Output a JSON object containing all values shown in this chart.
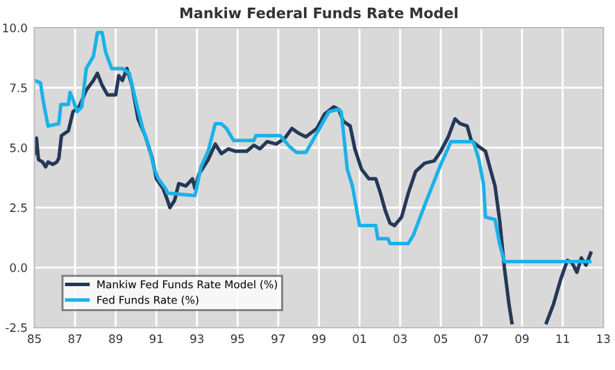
{
  "chart_data": {
    "type": "line",
    "title": "Mankiw Federal Funds Rate Model",
    "xlim": [
      1985,
      2013
    ],
    "xticks": [
      {
        "value": 1985,
        "label": "85"
      },
      {
        "value": 1987,
        "label": "87"
      },
      {
        "value": 1989,
        "label": "89"
      },
      {
        "value": 1991,
        "label": "91"
      },
      {
        "value": 1993,
        "label": "93"
      },
      {
        "value": 1995,
        "label": "95"
      },
      {
        "value": 1997,
        "label": "97"
      },
      {
        "value": 1999,
        "label": "99"
      },
      {
        "value": 2001,
        "label": "01"
      },
      {
        "value": 2003,
        "label": "03"
      },
      {
        "value": 2005,
        "label": "05"
      },
      {
        "value": 2007,
        "label": "07"
      },
      {
        "value": 2009,
        "label": "09"
      },
      {
        "value": 2011,
        "label": "11"
      },
      {
        "value": 2013,
        "label": "13"
      }
    ],
    "ylim": [
      -2.5,
      10
    ],
    "yticks": [
      {
        "value": -2.5,
        "label": "-2.5"
      },
      {
        "value": 0,
        "label": "0.0"
      },
      {
        "value": 2.5,
        "label": "2.5"
      },
      {
        "value": 5,
        "label": "5.0"
      },
      {
        "value": 7.5,
        "label": "7.5"
      },
      {
        "value": 10,
        "label": "10.0"
      }
    ],
    "grid": true,
    "legend": "bottom left",
    "marker": "none",
    "line_style": "solid",
    "series": [
      {
        "name": "Mankiw Fed Funds Rate Model (%)",
        "color": "#243858",
        "x": [
          1985.0,
          1985.1,
          1985.2,
          1985.4,
          1985.55,
          1985.67,
          1985.9,
          1986.1,
          1986.2,
          1986.33,
          1986.67,
          1986.9,
          1987.2,
          1987.55,
          1987.9,
          1988.1,
          1988.33,
          1988.6,
          1989.0,
          1989.15,
          1989.33,
          1989.55,
          1989.8,
          1990.1,
          1990.45,
          1990.8,
          1991.0,
          1991.33,
          1991.55,
          1991.67,
          1991.9,
          1992.1,
          1992.45,
          1992.78,
          1992.9,
          1993.1,
          1993.33,
          1993.55,
          1993.9,
          1994.2,
          1994.55,
          1994.9,
          1995.45,
          1995.8,
          1996.1,
          1996.45,
          1996.9,
          1997.33,
          1997.67,
          1998.0,
          1998.36,
          1998.9,
          1999.28,
          1999.73,
          1999.97,
          2000.2,
          2000.54,
          2000.77,
          2001.1,
          2001.46,
          2001.8,
          2002.03,
          2002.26,
          2002.5,
          2002.72,
          2003.07,
          2003.4,
          2003.76,
          2004.2,
          2004.68,
          2005.0,
          2005.37,
          2005.7,
          2005.95,
          2006.3,
          2006.5,
          2006.86,
          2007.2,
          2007.44,
          2007.67,
          2007.9,
          2008.13,
          2008.36,
          2008.5,
          2009.3,
          2010.2,
          2010.54,
          2010.9,
          2011.23,
          2011.46,
          2011.7,
          2011.92,
          2012.15,
          2012.38
        ],
        "values": [
          4.75,
          5.4,
          4.5,
          4.4,
          4.2,
          4.4,
          4.3,
          4.4,
          4.55,
          5.5,
          5.7,
          6.5,
          6.7,
          7.4,
          7.8,
          8.1,
          7.6,
          7.2,
          7.2,
          8.0,
          7.8,
          8.3,
          7.6,
          6.2,
          5.5,
          4.55,
          3.7,
          3.3,
          2.8,
          2.5,
          2.8,
          3.5,
          3.4,
          3.7,
          3.3,
          3.9,
          4.2,
          4.5,
          5.15,
          4.75,
          4.95,
          4.85,
          4.85,
          5.1,
          4.95,
          5.25,
          5.15,
          5.4,
          5.8,
          5.6,
          5.45,
          5.8,
          6.4,
          6.7,
          6.6,
          6.1,
          5.9,
          4.95,
          4.1,
          3.7,
          3.7,
          3.1,
          2.4,
          1.85,
          1.75,
          2.1,
          3.1,
          4.0,
          4.35,
          4.45,
          4.85,
          5.45,
          6.2,
          6.0,
          5.9,
          5.3,
          5.05,
          4.85,
          4.1,
          3.4,
          1.95,
          0.0,
          -1.55,
          -2.3,
          null,
          -2.3,
          -1.55,
          -0.5,
          0.3,
          0.2,
          -0.2,
          0.4,
          0.1,
          0.6
        ]
      },
      {
        "name": "Fed Funds Rate (%)",
        "color": "#1ab2e8",
        "x": [
          1985.0,
          1985.3,
          1985.44,
          1985.67,
          1986.2,
          1986.3,
          1986.67,
          1986.75,
          1986.9,
          1987.1,
          1987.33,
          1987.55,
          1987.9,
          1988.1,
          1988.33,
          1988.5,
          1988.67,
          1988.8,
          1989.33,
          1989.67,
          1990.0,
          1990.33,
          1990.67,
          1990.9,
          1991.1,
          1991.45,
          1991.55,
          1992.9,
          1993.2,
          1993.55,
          1993.9,
          1994.2,
          1994.45,
          1994.8,
          1995.8,
          1995.9,
          1997.1,
          1997.55,
          1997.9,
          1998.36,
          1998.7,
          1999.16,
          1999.5,
          1999.97,
          2000.1,
          2000.4,
          2000.65,
          2001.0,
          2001.8,
          2001.9,
          2002.4,
          2002.5,
          2003.4,
          2003.65,
          2004.3,
          2005.0,
          2005.5,
          2006.6,
          2006.86,
          2007.1,
          2007.2,
          2007.67,
          2007.9,
          2008.13,
          2012.33
        ],
        "values": [
          7.8,
          7.7,
          6.9,
          5.9,
          6.0,
          6.8,
          6.8,
          7.3,
          7.0,
          6.5,
          6.7,
          8.3,
          8.8,
          9.8,
          9.8,
          9.0,
          8.6,
          8.3,
          8.3,
          8.1,
          6.9,
          5.8,
          4.95,
          4.1,
          3.7,
          3.3,
          3.1,
          3.0,
          4.2,
          4.85,
          6.0,
          6.0,
          5.8,
          5.3,
          5.3,
          5.5,
          5.5,
          5.05,
          4.8,
          4.8,
          5.3,
          6.0,
          6.5,
          6.6,
          6.5,
          4.1,
          3.4,
          1.75,
          1.75,
          1.2,
          1.2,
          1.0,
          1.0,
          1.35,
          2.8,
          4.3,
          5.25,
          5.25,
          4.55,
          3.5,
          2.1,
          2.0,
          0.97,
          0.25,
          0.25
        ]
      }
    ]
  }
}
